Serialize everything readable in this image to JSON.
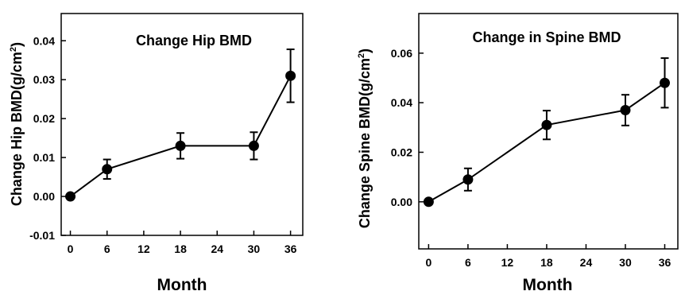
{
  "chart_data": [
    {
      "type": "line",
      "title": "Change Hip BMD",
      "xlabel": "Month",
      "ylabel": "Change Hip BMD(g/cm",
      "ylabel_sup": "2",
      "ylabel_end": ")",
      "x": [
        0,
        6,
        18,
        30,
        36
      ],
      "xticks": [
        0,
        6,
        12,
        18,
        24,
        30,
        36
      ],
      "xtick_labels": [
        "0",
        "6",
        "12",
        "18",
        "24",
        "30",
        "36"
      ],
      "xlim": [
        -1.5,
        38
      ],
      "yticks": [
        -0.01,
        0.0,
        0.01,
        0.02,
        0.03,
        0.04
      ],
      "ytick_labels": [
        "-0.01",
        "0.00",
        "0.01",
        "0.02",
        "0.03",
        "0.04"
      ],
      "ylim": [
        -0.01,
        0.047
      ],
      "grid": false,
      "series": [
        {
          "values": [
            0.0,
            0.007,
            0.013,
            0.013,
            0.031
          ],
          "errors": [
            0.0,
            0.0025,
            0.0033,
            0.0035,
            0.0068
          ],
          "color": "#000000",
          "marker": "filled-circle"
        }
      ]
    },
    {
      "type": "line",
      "title": "Change in Spine BMD",
      "xlabel": "Month",
      "ylabel": "Change Spine BMD(g/cm",
      "ylabel_sup": "2",
      "ylabel_end": ")",
      "x": [
        0,
        6,
        18,
        30,
        36
      ],
      "xticks": [
        0,
        6,
        12,
        18,
        24,
        30,
        36
      ],
      "xtick_labels": [
        "0",
        "6",
        "12",
        "18",
        "24",
        "30",
        "36"
      ],
      "xlim": [
        -1.5,
        38
      ],
      "yticks": [
        0.0,
        0.02,
        0.04,
        0.06
      ],
      "ytick_labels": [
        "0.00",
        "0.02",
        "0.04",
        "0.06"
      ],
      "ylim": [
        -0.019,
        0.076
      ],
      "grid": false,
      "series": [
        {
          "values": [
            0.0,
            0.009,
            0.031,
            0.037,
            0.048
          ],
          "errors": [
            0.0,
            0.0045,
            0.0058,
            0.0062,
            0.01
          ],
          "color": "#000000",
          "marker": "filled-circle"
        }
      ]
    }
  ]
}
